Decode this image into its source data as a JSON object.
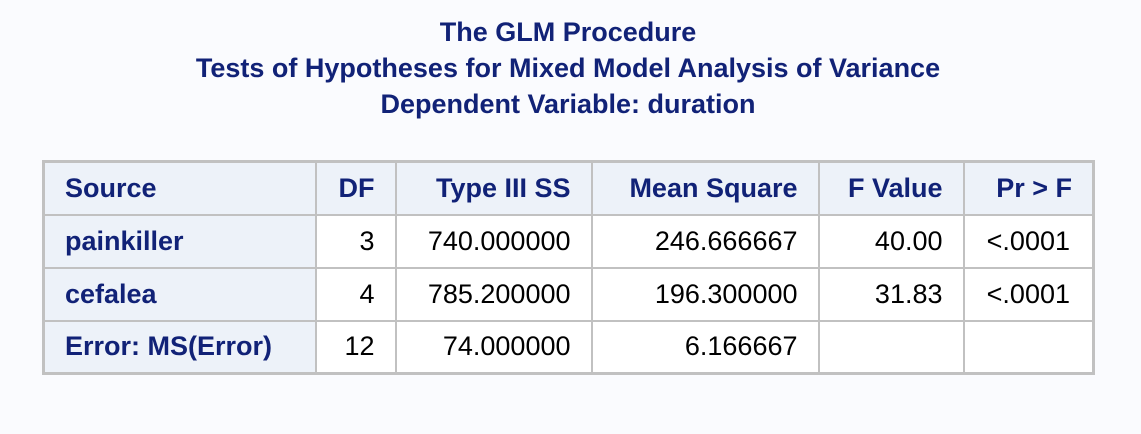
{
  "titles": {
    "line1": "The GLM Procedure",
    "line2": "Tests of Hypotheses for Mixed Model Analysis of Variance",
    "line3": "Dependent Variable: duration"
  },
  "table": {
    "headers": {
      "source": "Source",
      "df": "DF",
      "type3ss": "Type III SS",
      "mean_square": "Mean Square",
      "f_value": "F Value",
      "pr_f": "Pr > F"
    },
    "rows": [
      {
        "source": "painkiller",
        "df": "3",
        "type3ss": "740.000000",
        "mean_square": "246.666667",
        "f_value": "40.00",
        "pr_f": "<.0001"
      },
      {
        "source": "cefalea",
        "df": "4",
        "type3ss": "785.200000",
        "mean_square": "196.300000",
        "f_value": "31.83",
        "pr_f": "<.0001"
      },
      {
        "source": "Error: MS(Error)",
        "df": "12",
        "type3ss": "74.000000",
        "mean_square": "6.166667",
        "f_value": "",
        "pr_f": ""
      }
    ]
  },
  "colors": {
    "header_text": "#112277",
    "header_bg": "#edf2f9",
    "border": "#c1c1c1",
    "page_bg": "#fafbfe"
  }
}
